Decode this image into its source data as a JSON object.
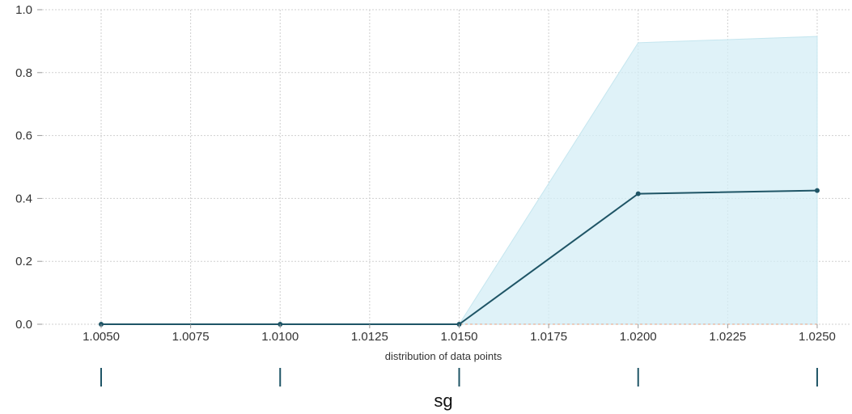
{
  "chart_data": {
    "type": "line",
    "x": [
      1.005,
      1.01,
      1.015,
      1.02,
      1.025
    ],
    "series": [
      {
        "values": [
          0.0,
          0.0,
          0.0,
          0.415,
          0.425
        ],
        "lower": [
          0.0,
          0.0,
          0.0,
          0.0,
          0.0
        ],
        "upper": [
          0.0,
          0.0,
          0.0,
          0.895,
          0.915
        ]
      }
    ],
    "x_ticks": [
      "1.0050",
      "1.0075",
      "1.0100",
      "1.0125",
      "1.0150",
      "1.0175",
      "1.0200",
      "1.0225",
      "1.0250"
    ],
    "y_ticks": [
      "0.0",
      "0.2",
      "0.4",
      "0.6",
      "0.8",
      "1.0"
    ],
    "xlim": [
      1.00335,
      1.02595
    ],
    "ylim": [
      0,
      1.0
    ],
    "xlabel": "distribution of data points",
    "rug_label": "sg",
    "rug_values": [
      1.005,
      1.01,
      1.015,
      1.02,
      1.025
    ],
    "grid": true,
    "colors": {
      "line": "#1f5566",
      "band": "#d4eef5",
      "rug": "#1f5566",
      "baseline": "#e3a080"
    }
  }
}
